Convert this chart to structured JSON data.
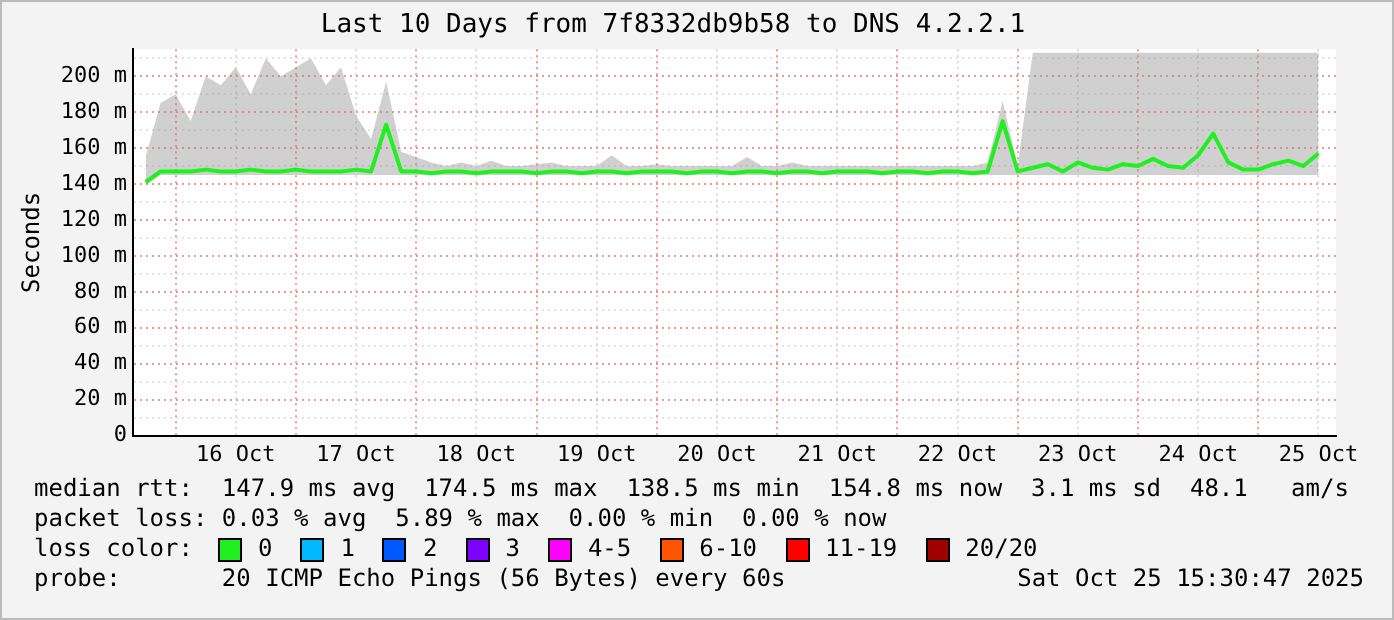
{
  "chart_data": {
    "type": "line",
    "title": "Last 10 Days from 7f8332db9b58 to DNS 4.2.2.1",
    "ylabel": "Seconds",
    "legend_title": "loss color:",
    "legend": "bottom",
    "marker": "none",
    "grid": true,
    "xlim": [
      "2025-10-15T15:30",
      "2025-10-25T15:30"
    ],
    "xticks": [
      {
        "value": "2025-10-16T00:00",
        "label": null
      },
      {
        "value": "2025-10-16T12:00",
        "label": "16 Oct"
      },
      {
        "value": "2025-10-17T00:00",
        "label": null
      },
      {
        "value": "2025-10-17T12:00",
        "label": "17 Oct"
      },
      {
        "value": "2025-10-18T00:00",
        "label": null
      },
      {
        "value": "2025-10-18T12:00",
        "label": "18 Oct"
      },
      {
        "value": "2025-10-19T00:00",
        "label": null
      },
      {
        "value": "2025-10-19T12:00",
        "label": "19 Oct"
      },
      {
        "value": "2025-10-20T00:00",
        "label": null
      },
      {
        "value": "2025-10-20T12:00",
        "label": "20 Oct"
      },
      {
        "value": "2025-10-21T00:00",
        "label": null
      },
      {
        "value": "2025-10-21T12:00",
        "label": "21 Oct"
      },
      {
        "value": "2025-10-22T00:00",
        "label": null
      },
      {
        "value": "2025-10-22T12:00",
        "label": "22 Oct"
      },
      {
        "value": "2025-10-23T00:00",
        "label": null
      },
      {
        "value": "2025-10-23T12:00",
        "label": "23 Oct"
      },
      {
        "value": "2025-10-24T00:00",
        "label": null
      },
      {
        "value": "2025-10-24T12:00",
        "label": "24 Oct"
      },
      {
        "value": "2025-10-25T00:00",
        "label": null
      },
      {
        "value": "2025-10-25T12:00",
        "label": "25 Oct"
      }
    ],
    "ylim": [
      0,
      215
    ],
    "yticks": [
      0,
      {
        "value": 10,
        "label": null
      },
      {
        "value": 20,
        "label": "20 m"
      },
      {
        "value": 30,
        "label": null
      },
      {
        "value": 40,
        "label": "40 m"
      },
      {
        "value": 50,
        "label": null
      },
      {
        "value": 60,
        "label": "60 m"
      },
      {
        "value": 70,
        "label": null
      },
      {
        "value": 80,
        "label": "80 m"
      },
      {
        "value": 90,
        "label": null
      },
      {
        "value": 100,
        "label": "100 m"
      },
      {
        "value": 110,
        "label": null
      },
      {
        "value": 120,
        "label": "120 m"
      },
      {
        "value": 130,
        "label": null
      },
      {
        "value": 140,
        "label": "140 m"
      },
      {
        "value": 150,
        "label": null
      },
      {
        "value": 160,
        "label": "160 m"
      },
      {
        "value": 170,
        "label": null
      },
      {
        "value": 180,
        "label": "180 m"
      },
      {
        "value": 190,
        "label": null
      },
      {
        "value": 200,
        "label": "200 m"
      },
      {
        "value": 210,
        "label": null
      }
    ],
    "x": [
      "2025-10-15T18:00",
      "2025-10-15T21:00",
      "2025-10-16T00:00",
      "2025-10-16T03:00",
      "2025-10-16T06:00",
      "2025-10-16T09:00",
      "2025-10-16T12:00",
      "2025-10-16T15:00",
      "2025-10-16T18:00",
      "2025-10-16T21:00",
      "2025-10-17T00:00",
      "2025-10-17T03:00",
      "2025-10-17T06:00",
      "2025-10-17T09:00",
      "2025-10-17T12:00",
      "2025-10-17T15:00",
      "2025-10-17T18:00",
      "2025-10-17T21:00",
      "2025-10-18T00:00",
      "2025-10-18T03:00",
      "2025-10-18T06:00",
      "2025-10-18T09:00",
      "2025-10-18T12:00",
      "2025-10-18T15:00",
      "2025-10-18T18:00",
      "2025-10-18T21:00",
      "2025-10-19T00:00",
      "2025-10-19T03:00",
      "2025-10-19T06:00",
      "2025-10-19T09:00",
      "2025-10-19T12:00",
      "2025-10-19T15:00",
      "2025-10-19T18:00",
      "2025-10-19T21:00",
      "2025-10-20T00:00",
      "2025-10-20T03:00",
      "2025-10-20T06:00",
      "2025-10-20T09:00",
      "2025-10-20T12:00",
      "2025-10-20T15:00",
      "2025-10-20T18:00",
      "2025-10-20T21:00",
      "2025-10-21T00:00",
      "2025-10-21T03:00",
      "2025-10-21T06:00",
      "2025-10-21T09:00",
      "2025-10-21T12:00",
      "2025-10-21T15:00",
      "2025-10-21T18:00",
      "2025-10-21T21:00",
      "2025-10-22T00:00",
      "2025-10-22T03:00",
      "2025-10-22T06:00",
      "2025-10-22T09:00",
      "2025-10-22T12:00",
      "2025-10-22T15:00",
      "2025-10-22T18:00",
      "2025-10-22T21:00",
      "2025-10-23T00:00",
      "2025-10-23T03:00",
      "2025-10-23T06:00",
      "2025-10-23T09:00",
      "2025-10-23T12:00",
      "2025-10-23T15:00",
      "2025-10-23T18:00",
      "2025-10-23T21:00",
      "2025-10-24T00:00",
      "2025-10-24T03:00",
      "2025-10-24T06:00",
      "2025-10-24T09:00",
      "2025-10-24T12:00",
      "2025-10-24T15:00",
      "2025-10-24T18:00",
      "2025-10-24T21:00",
      "2025-10-25T00:00",
      "2025-10-25T03:00",
      "2025-10-25T06:00",
      "2025-10-25T09:00",
      "2025-10-25T12:00"
    ],
    "series": [
      {
        "name": "0",
        "color": "#20f020",
        "values": [
          141,
          147,
          147,
          147,
          148,
          147,
          147,
          148,
          147,
          147,
          148,
          147,
          147,
          147,
          148,
          147,
          173,
          147,
          147,
          146,
          147,
          147,
          146,
          147,
          147,
          147,
          146,
          147,
          147,
          146,
          147,
          147,
          146,
          147,
          147,
          147,
          146,
          147,
          147,
          146,
          147,
          147,
          146,
          147,
          147,
          146,
          147,
          147,
          147,
          146,
          147,
          147,
          146,
          147,
          147,
          146,
          147,
          175,
          147,
          149,
          151,
          147,
          152,
          149,
          148,
          151,
          150,
          154,
          150,
          149,
          156,
          168,
          152,
          148,
          148,
          151,
          153,
          150,
          157
        ],
        "lower": [
          139,
          145,
          145,
          145,
          145,
          145,
          145,
          145,
          145,
          145,
          145,
          145,
          145,
          145,
          145,
          145,
          145,
          145,
          145,
          145,
          145,
          145,
          145,
          145,
          145,
          145,
          145,
          145,
          145,
          145,
          145,
          145,
          145,
          145,
          145,
          145,
          145,
          145,
          145,
          145,
          145,
          145,
          145,
          145,
          145,
          145,
          145,
          145,
          145,
          145,
          145,
          145,
          145,
          145,
          145,
          145,
          145,
          145,
          145,
          145,
          145,
          145,
          145,
          145,
          145,
          145,
          145,
          145,
          145,
          145,
          145,
          145,
          145,
          145,
          145,
          145,
          145,
          145,
          145
        ],
        "upper": [
          155,
          185,
          190,
          175,
          200,
          195,
          205,
          190,
          210,
          200,
          205,
          210,
          195,
          205,
          178,
          165,
          197,
          158,
          155,
          152,
          150,
          152,
          150,
          153,
          150,
          150,
          151,
          152,
          150,
          150,
          150,
          156,
          150,
          150,
          151,
          150,
          150,
          150,
          150,
          150,
          155,
          150,
          150,
          152,
          150,
          150,
          150,
          150,
          150,
          150,
          150,
          150,
          150,
          150,
          150,
          150,
          152,
          186,
          150,
          213,
          213,
          213,
          213,
          213,
          213,
          213,
          213,
          213,
          213,
          213,
          213,
          213,
          213,
          213,
          213,
          213,
          213,
          213,
          213
        ]
      },
      {
        "name": "1",
        "color": "#00b8ff",
        "values": [
          null,
          null,
          null,
          null,
          null,
          null,
          null,
          null,
          null,
          null,
          null,
          null,
          null,
          null,
          null,
          null,
          null,
          null,
          null,
          null,
          null,
          null,
          null,
          null,
          null,
          null,
          null,
          null,
          null,
          null,
          null,
          null,
          null,
          null,
          null,
          null,
          null,
          null,
          null,
          null,
          null,
          null,
          null,
          null,
          null,
          null,
          null,
          null,
          null,
          null,
          null,
          null,
          null,
          null,
          null,
          null,
          null,
          null,
          null,
          null,
          null,
          null,
          null,
          null,
          null,
          null,
          null,
          null,
          null,
          null,
          null,
          null,
          null,
          null,
          null,
          null,
          null,
          null,
          null
        ]
      },
      {
        "name": "2",
        "color": "#0059ff",
        "values": [
          null,
          null,
          null,
          null,
          null,
          null,
          null,
          null,
          null,
          null,
          null,
          null,
          null,
          null,
          null,
          null,
          null,
          null,
          null,
          null,
          null,
          null,
          null,
          null,
          null,
          null,
          null,
          null,
          null,
          null,
          null,
          null,
          null,
          null,
          null,
          null,
          null,
          null,
          null,
          null,
          null,
          null,
          null,
          null,
          null,
          null,
          null,
          null,
          null,
          null,
          null,
          null,
          null,
          null,
          null,
          null,
          null,
          null,
          null,
          null,
          null,
          null,
          null,
          null,
          null,
          null,
          null,
          null,
          null,
          null,
          null,
          null,
          null,
          null,
          null,
          null,
          null,
          null,
          null
        ]
      },
      {
        "name": "3",
        "color": "#7e00ff",
        "values": [
          null,
          null,
          null,
          null,
          null,
          null,
          null,
          null,
          null,
          null,
          null,
          null,
          null,
          null,
          null,
          null,
          null,
          null,
          null,
          null,
          null,
          null,
          null,
          null,
          null,
          null,
          null,
          null,
          null,
          null,
          null,
          null,
          null,
          null,
          null,
          null,
          null,
          null,
          null,
          null,
          null,
          null,
          null,
          null,
          null,
          null,
          null,
          null,
          null,
          null,
          null,
          null,
          null,
          null,
          null,
          null,
          null,
          null,
          null,
          null,
          null,
          null,
          null,
          null,
          null,
          null,
          null,
          null,
          null,
          null,
          null,
          null,
          null,
          null,
          null,
          null,
          null,
          null,
          null
        ]
      },
      {
        "name": "4-5",
        "color": "#ff00ff",
        "values": [
          null,
          null,
          null,
          null,
          null,
          null,
          null,
          null,
          null,
          null,
          null,
          null,
          null,
          null,
          null,
          null,
          null,
          null,
          null,
          null,
          null,
          null,
          null,
          null,
          null,
          null,
          null,
          null,
          null,
          null,
          null,
          null,
          null,
          null,
          null,
          null,
          null,
          null,
          null,
          null,
          null,
          null,
          null,
          null,
          null,
          null,
          null,
          null,
          null,
          null,
          null,
          null,
          null,
          null,
          null,
          null,
          null,
          null,
          null,
          null,
          null,
          null,
          null,
          null,
          null,
          null,
          null,
          null,
          null,
          null,
          null,
          null,
          null,
          null,
          null,
          null,
          null,
          null,
          null
        ]
      },
      {
        "name": "6-10",
        "color": "#ff5500",
        "values": [
          null,
          null,
          null,
          null,
          null,
          null,
          null,
          null,
          null,
          null,
          null,
          null,
          null,
          null,
          null,
          null,
          null,
          null,
          null,
          null,
          null,
          null,
          null,
          null,
          null,
          null,
          null,
          null,
          null,
          null,
          null,
          null,
          null,
          null,
          null,
          null,
          null,
          null,
          null,
          null,
          null,
          null,
          null,
          null,
          null,
          null,
          null,
          null,
          null,
          null,
          null,
          null,
          null,
          null,
          null,
          null,
          null,
          null,
          null,
          null,
          null,
          null,
          null,
          null,
          null,
          null,
          null,
          null,
          null,
          null,
          null,
          null,
          null,
          null,
          null,
          null,
          null,
          null,
          null
        ]
      },
      {
        "name": "11-19",
        "color": "#ff0000",
        "values": [
          null,
          null,
          null,
          null,
          null,
          null,
          null,
          null,
          null,
          null,
          null,
          null,
          null,
          null,
          null,
          null,
          null,
          null,
          null,
          null,
          null,
          null,
          null,
          null,
          null,
          null,
          null,
          null,
          null,
          null,
          null,
          null,
          null,
          null,
          null,
          null,
          null,
          null,
          null,
          null,
          null,
          null,
          null,
          null,
          null,
          null,
          null,
          null,
          null,
          null,
          null,
          null,
          null,
          null,
          null,
          null,
          null,
          null,
          null,
          null,
          null,
          null,
          null,
          null,
          null,
          null,
          null,
          null,
          null,
          null,
          null,
          null,
          null,
          null,
          null,
          null,
          null,
          null,
          null
        ]
      },
      {
        "name": "20/20",
        "color": "#a10000",
        "values": [
          null,
          null,
          null,
          null,
          null,
          null,
          null,
          null,
          null,
          null,
          null,
          null,
          null,
          null,
          null,
          null,
          null,
          null,
          null,
          null,
          null,
          null,
          null,
          null,
          null,
          null,
          null,
          null,
          null,
          null,
          null,
          null,
          null,
          null,
          null,
          null,
          null,
          null,
          null,
          null,
          null,
          null,
          null,
          null,
          null,
          null,
          null,
          null,
          null,
          null,
          null,
          null,
          null,
          null,
          null,
          null,
          null,
          null,
          null,
          null,
          null,
          null,
          null,
          null,
          null,
          null,
          null,
          null,
          null,
          null,
          null,
          null,
          null,
          null,
          null,
          null,
          null,
          null,
          null
        ]
      }
    ],
    "annotations": [
      "median rtt:  147.9 ms avg  174.5 ms max  138.5 ms min  154.8 ms now  3.1 ms sd  48.1   am/s",
      "packet loss: 0.03 % avg  5.89 % max  0.00 % min  0.00 % now",
      "probe:       20 ICMP Echo Pings (56 Bytes) every 60s",
      "Sat Oct 25 15:30:47 2025"
    ]
  }
}
